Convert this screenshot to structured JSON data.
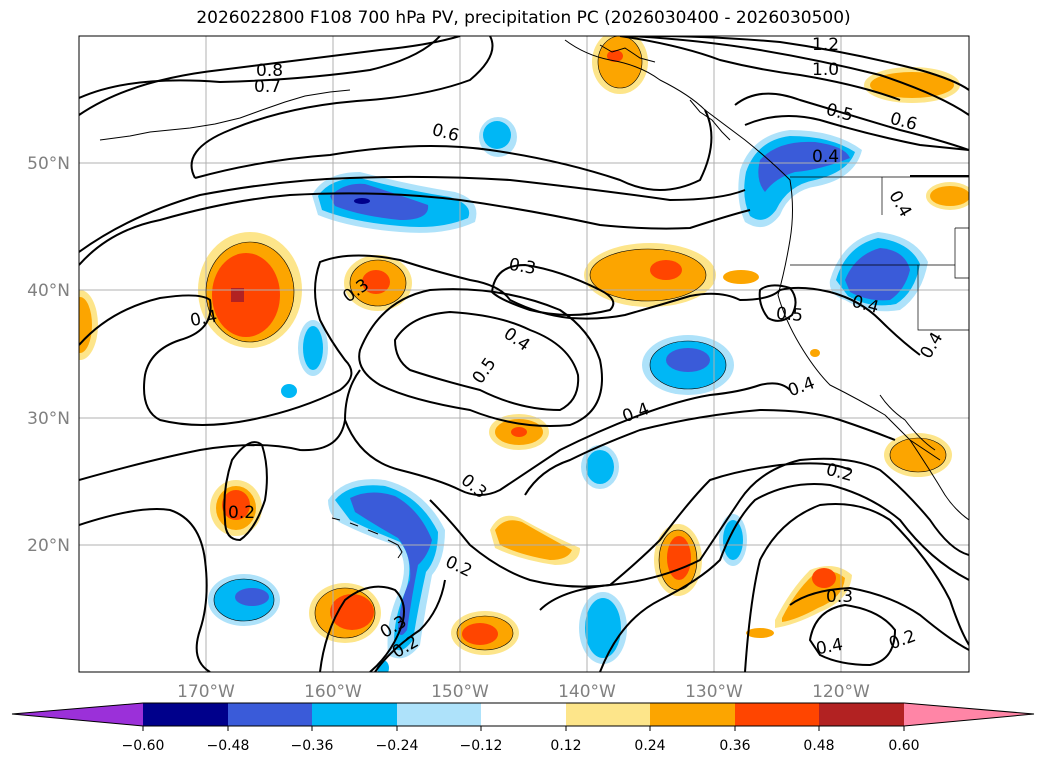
{
  "title": "2026022800 F108 700 hPa PV, precipitation PC (2026030400 - 2026030500)",
  "lat_labels": [
    "50°N",
    "40°N",
    "30°N",
    "20°N"
  ],
  "lon_labels": [
    "170°W",
    "160°W",
    "150°W",
    "140°W",
    "130°W",
    "120°W"
  ],
  "contour_labels": [
    "0.8",
    "0.7",
    "0.6",
    "1.2",
    "1.0",
    "0.5",
    "0.6",
    "0.4",
    "0.4",
    "0.4",
    "0.3",
    "0.4",
    "0.3",
    "0.4",
    "0.5",
    "0.5",
    "0.4",
    "0.4",
    "0.4",
    "0.2",
    "0.3",
    "0.2",
    "0.3",
    "0.2",
    "0.2",
    "0.3",
    "0.4",
    "0.2"
  ],
  "colorbar": {
    "ticks": [
      "−0.60",
      "−0.48",
      "−0.36",
      "−0.24",
      "−0.12",
      "0.12",
      "0.24",
      "0.36",
      "0.48",
      "0.60"
    ],
    "colors": [
      "#9b30d9",
      "#00008b",
      "#3a5bd9",
      "#00b7f5",
      "#aee2fa",
      "#ffffff",
      "#fde58a",
      "#fca500",
      "#ff4500",
      "#b22222",
      "#ff85a6"
    ]
  }
}
